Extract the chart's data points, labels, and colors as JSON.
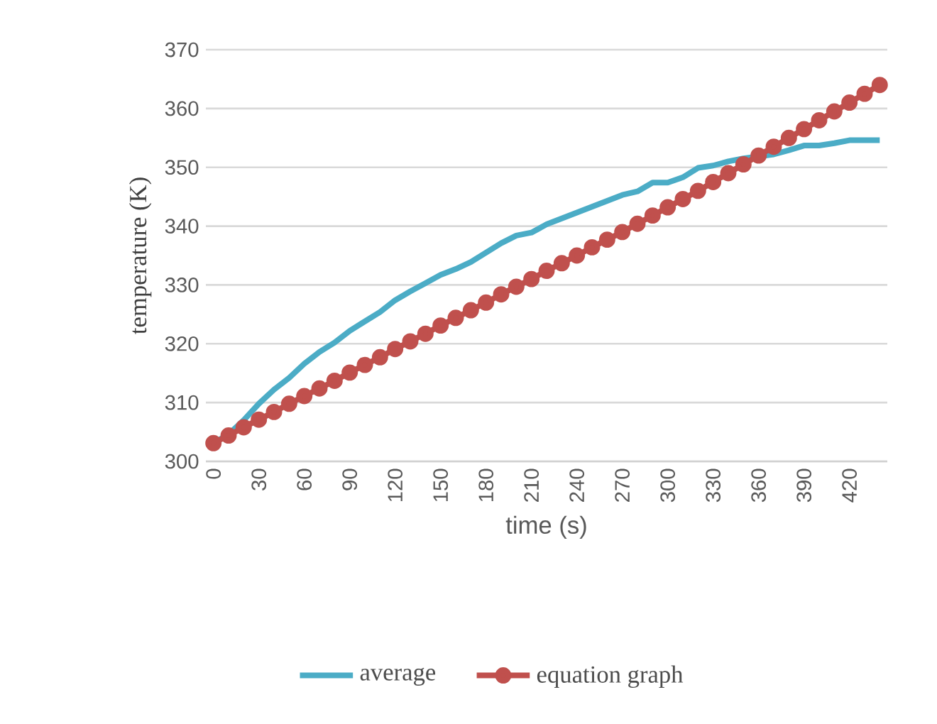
{
  "chart_data": {
    "type": "line",
    "xlabel": "time (s)",
    "ylabel": "temperature (K)",
    "categories": [
      "0",
      null,
      null,
      "30",
      null,
      null,
      "60",
      null,
      null,
      "90",
      null,
      null,
      "120",
      null,
      null,
      "150",
      null,
      null,
      "180",
      null,
      null,
      "210",
      null,
      null,
      "240",
      null,
      null,
      "270",
      null,
      null,
      "300",
      null,
      null,
      "330",
      null,
      null,
      "360",
      null,
      null,
      "390",
      null,
      null,
      "420",
      null,
      null
    ],
    "series": [
      {
        "name": "average",
        "color": "#4bacc6",
        "marker": "none",
        "values": [
          303.1,
          304.6,
          307.0,
          309.8,
          312.2,
          314.2,
          316.6,
          318.6,
          320.2,
          322.2,
          323.8,
          325.4,
          327.4,
          328.9,
          330.3,
          331.7,
          332.7,
          333.9,
          335.5,
          337.1,
          338.4,
          338.9,
          340.3,
          341.3,
          342.3,
          343.3,
          344.3,
          345.3,
          345.9,
          347.4,
          347.4,
          348.3,
          349.9,
          350.3,
          351.0,
          351.5,
          null,
          352.2,
          352.9,
          353.7,
          353.7,
          354.1,
          354.6,
          354.6,
          354.6
        ]
      },
      {
        "name": "equation graph",
        "color": "#c0504d",
        "marker": "circle",
        "values": [
          303.1,
          304.4,
          305.8,
          307.1,
          308.4,
          309.8,
          311.1,
          312.4,
          313.7,
          315.1,
          316.4,
          317.7,
          319.1,
          320.4,
          321.7,
          323.1,
          324.4,
          325.7,
          327.0,
          328.4,
          329.7,
          331.0,
          332.4,
          333.7,
          335.0,
          336.4,
          337.7,
          339.0,
          340.4,
          341.8,
          343.2,
          344.6,
          346.0,
          347.5,
          349.0,
          350.5,
          352.0,
          353.5,
          355.0,
          356.5,
          358.0,
          359.5,
          361.0,
          362.5,
          364.0
        ]
      }
    ],
    "ylim": [
      300,
      370
    ],
    "yticks": [
      300,
      310,
      320,
      330,
      340,
      350,
      360,
      370
    ],
    "grid": "y",
    "legend": "bottom"
  }
}
